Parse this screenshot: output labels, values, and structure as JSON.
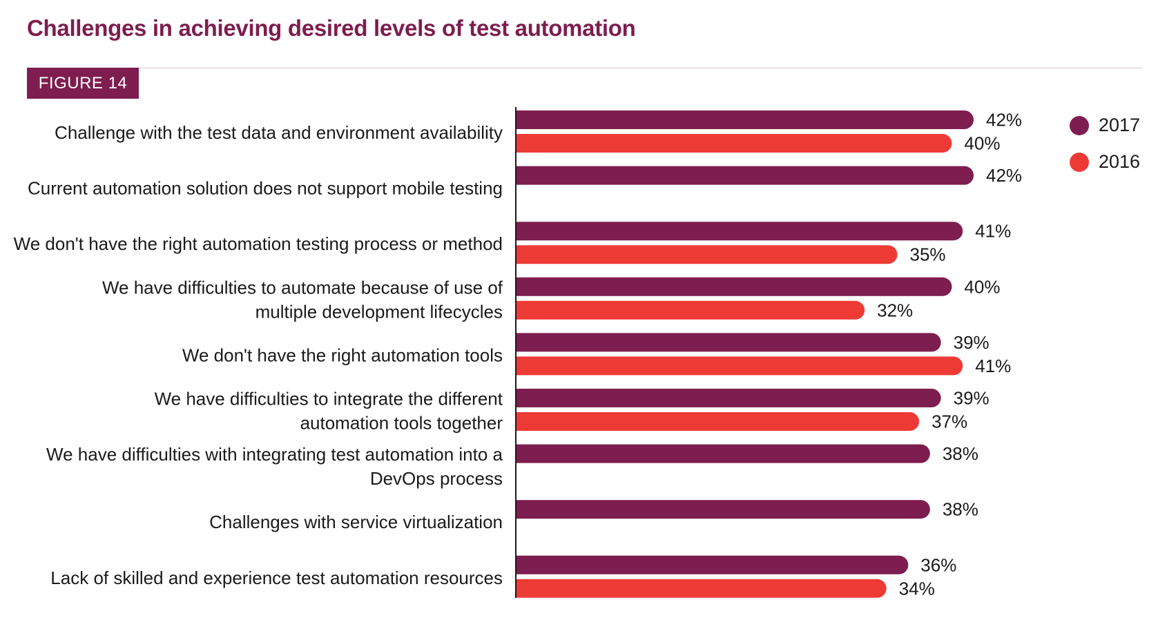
{
  "title": "Challenges in achieving desired levels of test automation",
  "figure_label": "FIGURE 14",
  "colors": {
    "s2017": "#7e1d4f",
    "s2016": "#ee3a35",
    "accent": "#7e1d4f"
  },
  "chart_data": {
    "type": "bar",
    "orientation": "horizontal",
    "categories": [
      [
        "Challenge with the test data and environment availability"
      ],
      [
        "Current automation solution does not support mobile testing"
      ],
      [
        "We don't have the right automation testing process or method"
      ],
      [
        "We have difficulties to automate because of use of",
        "multiple development lifecycles"
      ],
      [
        "We don't have the right automation tools"
      ],
      [
        "We have difficulties to integrate the different",
        "automation tools together"
      ],
      [
        "We have difficulties with integrating test automation into a",
        "DevOps process"
      ],
      [
        "Challenges with service virtualization"
      ],
      [
        "Lack of skilled and experience test automation resources"
      ]
    ],
    "series": [
      {
        "name": "2017",
        "color": "#7e1d4f",
        "values": [
          42,
          42,
          41,
          40,
          39,
          39,
          38,
          38,
          36
        ],
        "labels": [
          "42%",
          "42%",
          "41%",
          "40%",
          "39%",
          "39%",
          "38%",
          "38%",
          "36%"
        ]
      },
      {
        "name": "2016",
        "color": "#ee3a35",
        "values": [
          40,
          null,
          35,
          32,
          41,
          37,
          null,
          null,
          34
        ],
        "labels": [
          "40%",
          "",
          "35%",
          "32%",
          "41%",
          "37%",
          "",
          "",
          "34%"
        ]
      }
    ],
    "legend_position": "top-right",
    "xlim": [
      0,
      42
    ],
    "grid": false
  }
}
